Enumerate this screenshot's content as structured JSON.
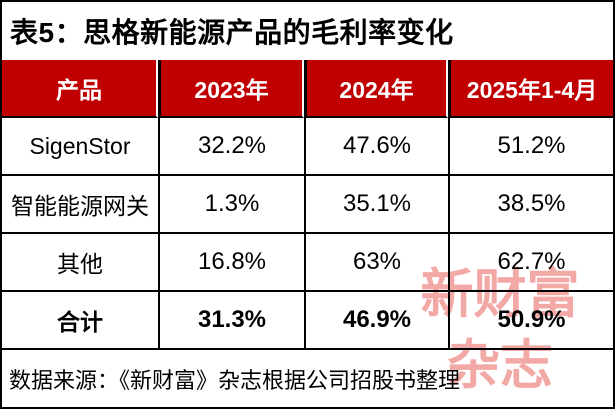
{
  "title": "表5：思格新能源产品的毛利率变化",
  "chart_data": {
    "type": "table",
    "title": "表5：思格新能源产品的毛利率变化",
    "columns": [
      "产品",
      "2023年",
      "2024年",
      "2025年1-4月"
    ],
    "rows": [
      [
        "SigenStor",
        "32.2%",
        "47.6%",
        "51.2%"
      ],
      [
        "智能能源网关",
        "1.3%",
        "35.1%",
        "38.5%"
      ],
      [
        "其他",
        "16.8%",
        "63%",
        "62.7%"
      ],
      [
        "合计",
        "31.3%",
        "46.9%",
        "50.9%"
      ]
    ],
    "bold_row_index": 3,
    "source_note": "数据来源：《新财富》杂志根据公司招股书整理",
    "layout": {
      "header_position": "top",
      "grid": "on",
      "value_unit": "percent"
    }
  },
  "footer": {
    "source": "数据来源：《新财富》杂志根据公司招股书整理"
  },
  "watermark": {
    "line1": "新财富",
    "line2": "杂志"
  },
  "colors": {
    "header_bg": "#c00000",
    "header_text": "#ffffff",
    "border": "#000000",
    "watermark": "#f2a8a5",
    "background": "#ffffff"
  }
}
